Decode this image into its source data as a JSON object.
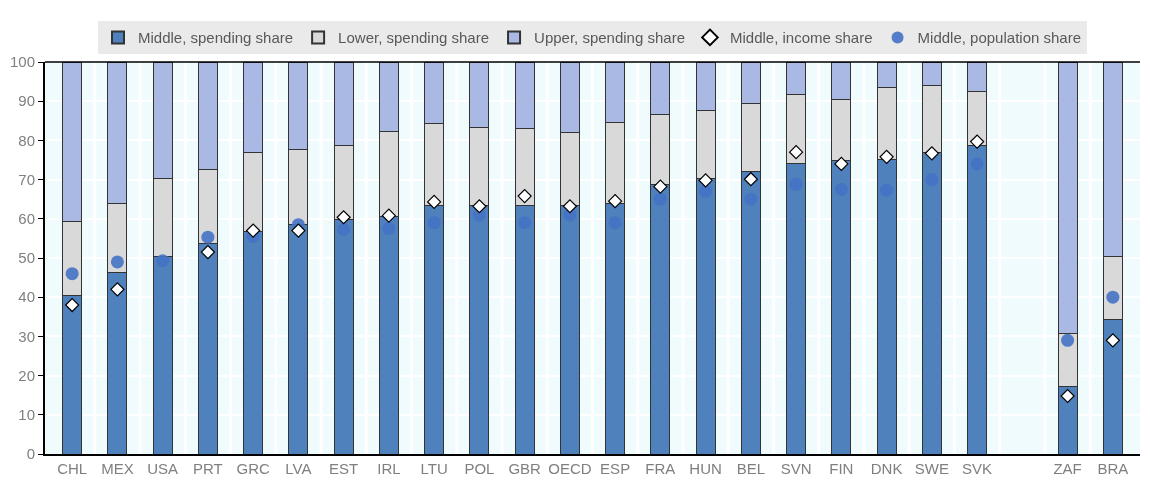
{
  "chart_data": {
    "type": "bar",
    "stacked": true,
    "categories": [
      "CHL",
      "MEX",
      "USA",
      "PRT",
      "GRC",
      "LVA",
      "EST",
      "IRL",
      "LTU",
      "POL",
      "GBR",
      "OECD",
      "ESP",
      "FRA",
      "HUN",
      "BEL",
      "SVN",
      "FIN",
      "DNK",
      "SWE",
      "SVK",
      null,
      "ZAF",
      "BRA"
    ],
    "series": [
      {
        "name": "Middle, spending share",
        "color": "#4f81bd",
        "values": [
          40.5,
          46.2,
          50.5,
          53.8,
          56.8,
          58.5,
          59.8,
          60.7,
          63.3,
          63.3,
          63.3,
          63.5,
          63.8,
          68.7,
          70.2,
          72.1,
          74.2,
          74.9,
          75.2,
          76.8,
          78.8,
          null,
          17.2,
          34.2
        ]
      },
      {
        "name": "Lower, spending share",
        "color": "#d9d9d9",
        "values": [
          18.8,
          17.8,
          19.8,
          18.8,
          20.2,
          19.3,
          18.9,
          21.6,
          20.9,
          20.1,
          19.8,
          18.5,
          20.8,
          17.9,
          17.4,
          17.2,
          17.4,
          15.6,
          18.2,
          17.1,
          13.7,
          null,
          13.6,
          16.3
        ]
      },
      {
        "name": "Upper, spending share",
        "color": "#a9b9e3",
        "values": [
          40.7,
          36.0,
          29.7,
          27.4,
          23.0,
          22.2,
          21.3,
          17.7,
          15.8,
          16.6,
          16.9,
          18.0,
          15.4,
          13.4,
          12.4,
          10.7,
          8.4,
          9.5,
          6.6,
          6.1,
          7.5,
          null,
          69.2,
          49.5
        ]
      },
      {
        "name": "Middle, income share",
        "type": "scatter",
        "marker": "diamond",
        "color": "#ffffff",
        "values": [
          38,
          42,
          null,
          51.5,
          57,
          57,
          60.4,
          60.8,
          64.3,
          63.2,
          65.8,
          63.2,
          64.5,
          68.2,
          69.8,
          70.1,
          77,
          74,
          75.8,
          76.7,
          79.7,
          null,
          14.8,
          29
        ]
      },
      {
        "name": "Middle, population share",
        "type": "scatter",
        "marker": "circle",
        "color": "#4472c4",
        "values": [
          46,
          49,
          49.3,
          55.3,
          55.5,
          58.5,
          57.3,
          57.5,
          59,
          61,
          59,
          61,
          59,
          65,
          67,
          65,
          68.8,
          67.5,
          67.3,
          70,
          74,
          null,
          29,
          40
        ]
      }
    ],
    "ylim": [
      0,
      100
    ],
    "yticks": [
      0,
      10,
      20,
      30,
      40,
      50,
      60,
      70,
      80,
      90,
      100
    ],
    "grid": true,
    "legend": "top"
  }
}
